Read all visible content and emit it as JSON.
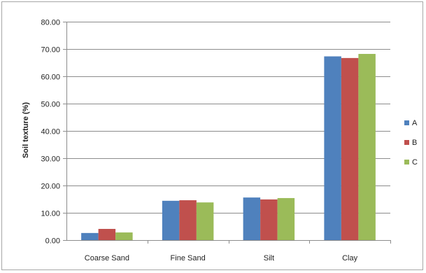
{
  "chart_data": {
    "type": "bar",
    "title": "",
    "xlabel": "",
    "ylabel": "Soil texture (%)",
    "categories": [
      "Coarse Sand",
      "Fine Sand",
      "Silt",
      "Clay"
    ],
    "ylim": [
      0,
      80
    ],
    "yticks": [
      "0.00",
      "10.00",
      "20.00",
      "30.00",
      "40.00",
      "50.00",
      "60.00",
      "70.00",
      "80.00"
    ],
    "grid": true,
    "legend_position": "right",
    "series": [
      {
        "name": "A",
        "color": "#4f81bd",
        "values": [
          2.6,
          14.4,
          15.6,
          67.3
        ]
      },
      {
        "name": "B",
        "color": "#c0504d",
        "values": [
          4.1,
          14.6,
          14.9,
          66.7
        ]
      },
      {
        "name": "C",
        "color": "#9bbb59",
        "values": [
          2.8,
          13.8,
          15.4,
          68.2
        ]
      }
    ]
  }
}
